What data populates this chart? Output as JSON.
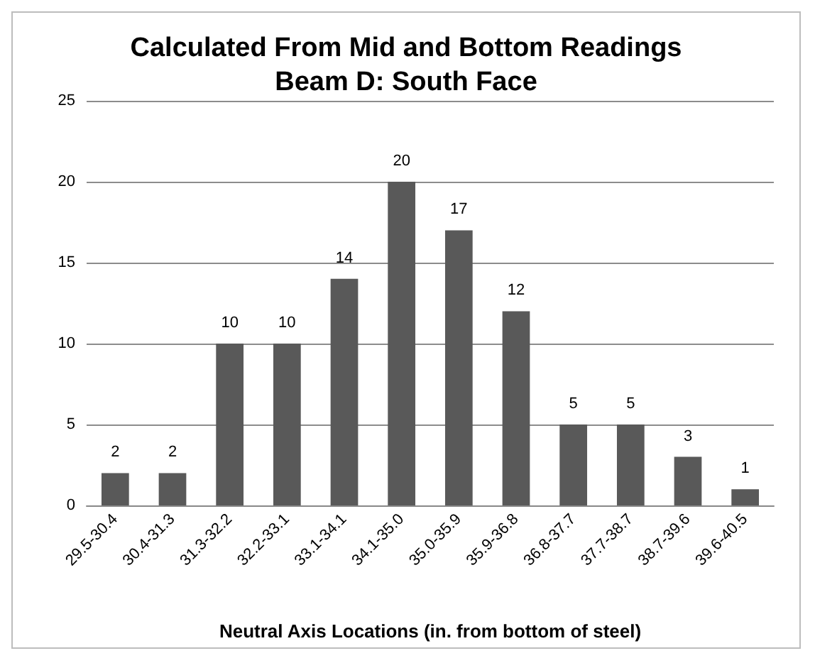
{
  "chart_data": {
    "type": "bar",
    "title": "Calculated From Mid and Bottom Readings\nBeam D: South Face",
    "xlabel": "Neutral Axis Locations (in. from bottom of steel)",
    "categories": [
      "29.5-30.4",
      "30.4-31.3",
      "31.3-32.2",
      "32.2-33.1",
      "33.1-34.1",
      "34.1-35.0",
      "35.0-35.9",
      "35.9-36.8",
      "36.8-37.7",
      "37.7-38.7",
      "38.7-39.6",
      "39.6-40.5"
    ],
    "values": [
      2,
      2,
      10,
      10,
      14,
      20,
      17,
      12,
      5,
      5,
      3,
      1
    ],
    "color": "#595959",
    "ylim": [
      0,
      25
    ],
    "yticks": [
      0,
      5,
      10,
      15,
      20,
      25
    ],
    "grid": "y",
    "data_labels": true
  }
}
